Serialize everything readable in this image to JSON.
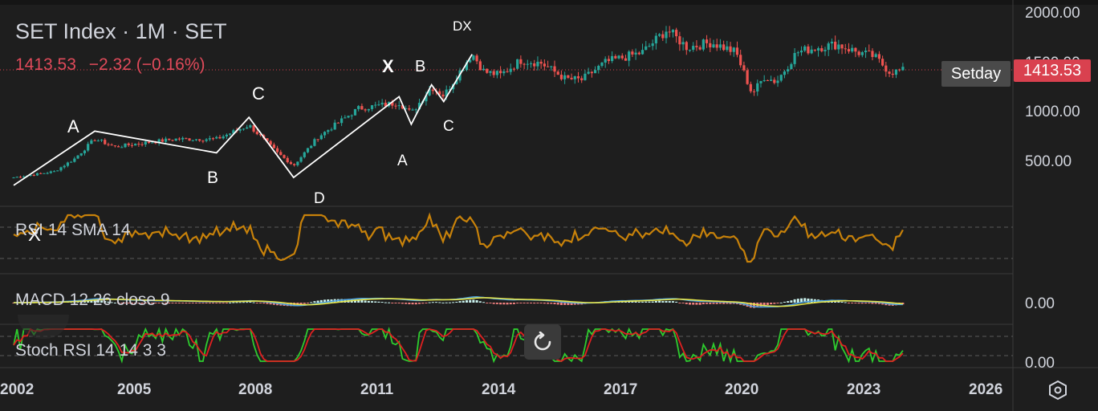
{
  "header": {
    "title": "SET Index · 1M · SET",
    "last_price": "1413.53",
    "change": "−2.32 (−0.16%)"
  },
  "price_scale": {
    "ticks": [
      "2000.00",
      "1500.00",
      "1000.00",
      "500.00"
    ],
    "current_price_tag": "1413.53",
    "marker_label": "Setday"
  },
  "indicators": {
    "rsi_label": "RSI 14 SMA 14",
    "macd_label": "MACD 12 26 close 9",
    "macd_scale": "0.00",
    "stoch_label": "Stoch RSI 14 14 3 3",
    "stoch_scale": "0.00"
  },
  "time_axis": [
    "2002",
    "2005",
    "2008",
    "2011",
    "2014",
    "2017",
    "2020",
    "2023",
    "2026"
  ],
  "drawing_labels": [
    "A",
    "B",
    "C",
    "D",
    "X",
    "A",
    "B",
    "C",
    "DX",
    "X"
  ],
  "icons": {
    "reset": "reset-icon",
    "settings": "settings-hexagon-icon"
  },
  "colors": {
    "background": "#1e1e1e",
    "up": "#26a69a",
    "down": "#ef5350",
    "rsi": "#c8820a",
    "macd": "#4fa3e0",
    "signal": "#e6e64c",
    "stoch_k": "#2ecc2e",
    "stoch_d": "#e02020",
    "price_tag": "#d9414f"
  },
  "chart_data": {
    "type": "line",
    "interval": "1M",
    "x_range": [
      2001.9,
      2026.2
    ],
    "ylim": [
      0,
      2000
    ],
    "series": [
      {
        "name": "SET Index",
        "x": [
          2002.0,
          2003.0,
          2003.5,
          2004.0,
          2004.5,
          2005.0,
          2006.0,
          2007.0,
          2007.8,
          2008.5,
          2008.9,
          2009.5,
          2010.5,
          2011.5,
          2011.8,
          2012.3,
          2012.6,
          2013.3,
          2013.6,
          2014.0,
          2014.5,
          2015.0,
          2015.6,
          2016.0,
          2016.6,
          2017.5,
          2018.1,
          2018.6,
          2019.2,
          2019.8,
          2020.2,
          2020.5,
          2020.8,
          2021.3,
          2021.8,
          2022.3,
          2022.8,
          2023.2,
          2023.6,
          2023.9
        ],
        "y": [
          330,
          390,
          520,
          720,
          640,
          670,
          720,
          720,
          860,
          580,
          450,
          740,
          1030,
          1090,
          980,
          1250,
          1160,
          1590,
          1400,
          1370,
          1520,
          1490,
          1330,
          1320,
          1500,
          1600,
          1830,
          1650,
          1700,
          1600,
          1180,
          1350,
          1300,
          1600,
          1650,
          1680,
          1600,
          1560,
          1400,
          1413.53
        ]
      },
      {
        "name": "Pattern drawing",
        "x": [
          2002.0,
          2004.0,
          2007.0,
          2007.8,
          2008.9,
          2011.5,
          2011.8,
          2012.3,
          2012.6,
          2013.3
        ],
        "y": [
          250,
          800,
          580,
          940,
          330,
          1150,
          870,
          1270,
          1100,
          1580
        ]
      }
    ]
  }
}
